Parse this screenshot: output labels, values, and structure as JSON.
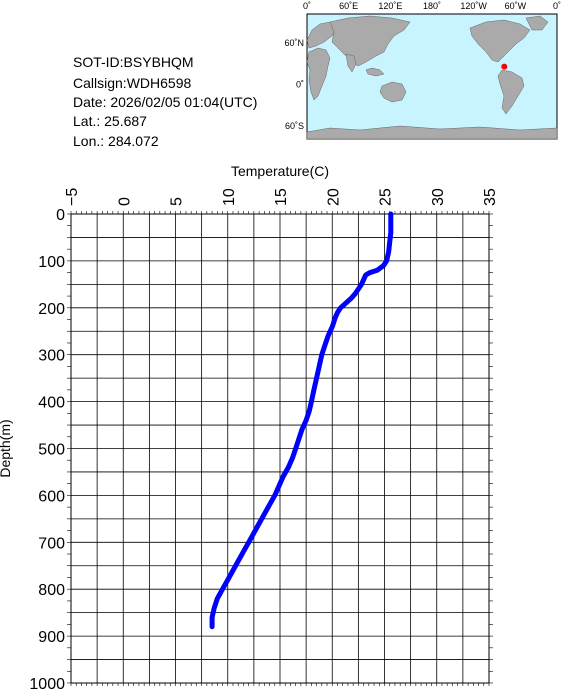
{
  "info": {
    "sot_id": "SOT-ID:BSYBHQM",
    "callsign": "Callsign:WDH6598",
    "date": "Date:  2026/02/05 01:04(UTC)",
    "lat": "Lat.:   25.687",
    "lon": "Lon.:  284.072"
  },
  "map": {
    "lon_labels": [
      "0˚",
      "60˚E",
      "120˚E",
      "180˚",
      "120˚W",
      "60˚W",
      "0˚"
    ],
    "lat_labels": [
      "60˚N",
      "0˚",
      "60˚S"
    ],
    "marker": {
      "lat": 25.687,
      "lon": 284.072
    },
    "ocean_color": "#c8f4ff",
    "land_color": "#aaaaaa",
    "marker_color": "#ff0000"
  },
  "chart_data": {
    "type": "line",
    "title": "",
    "xlabel": "Temperature(C)",
    "ylabel": "Depth(m)",
    "xlim": [
      -5,
      35
    ],
    "ylim": [
      0,
      1000
    ],
    "y_inverted": true,
    "x_ticks": [
      -5,
      0,
      5,
      10,
      15,
      20,
      25,
      30,
      35
    ],
    "y_ticks": [
      0,
      100,
      200,
      300,
      400,
      500,
      600,
      700,
      800,
      900,
      1000
    ],
    "grid": true,
    "line_color": "#0000ff",
    "series": [
      {
        "x": [
          25.6,
          25.6,
          25.5,
          25.4,
          25.2,
          24.9,
          24.3,
          23.6,
          23.2,
          23.0,
          22.8,
          22.5,
          22.2,
          21.8,
          21.3,
          20.8,
          20.5,
          20.3,
          20.0,
          19.6,
          19.3,
          19.0,
          18.8,
          18.6,
          18.4,
          18.2,
          18.0,
          17.8,
          17.5,
          17.1,
          16.8,
          16.5,
          16.2,
          15.8,
          15.3,
          14.9,
          14.5,
          14.0,
          13.5,
          13.0,
          12.5,
          12.0,
          11.5,
          11.0,
          10.5,
          10.0,
          9.5,
          9.0,
          8.7,
          8.5,
          8.5
        ],
        "y": [
          0,
          40,
          60,
          80,
          100,
          110,
          120,
          125,
          130,
          140,
          150,
          160,
          170,
          180,
          190,
          200,
          210,
          220,
          240,
          260,
          280,
          300,
          320,
          340,
          360,
          380,
          400,
          420,
          440,
          460,
          480,
          500,
          520,
          540,
          560,
          580,
          600,
          620,
          640,
          660,
          680,
          700,
          720,
          740,
          760,
          780,
          800,
          820,
          840,
          860,
          880
        ]
      }
    ]
  }
}
